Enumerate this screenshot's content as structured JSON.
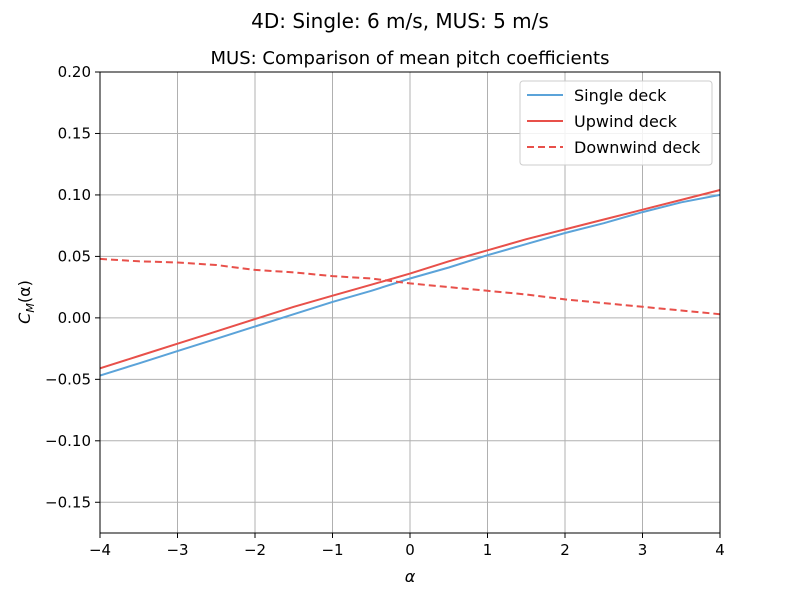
{
  "figure": {
    "suptitle": "4D: Single: 6 m/s, MUS: 5 m/s"
  },
  "chart_data": {
    "type": "line",
    "title": "MUS: Comparison of mean pitch coefficients",
    "xlabel": "α",
    "ylabel_main": "C",
    "ylabel_sub": "M",
    "ylabel_tail": "(α)",
    "xlim": [
      -4,
      4
    ],
    "ylim": [
      -0.175,
      0.2
    ],
    "xticks": [
      -4,
      -3,
      -2,
      -1,
      0,
      1,
      2,
      3,
      4
    ],
    "xtick_labels": [
      "−4",
      "−3",
      "−2",
      "−1",
      "0",
      "1",
      "2",
      "3",
      "4"
    ],
    "yticks": [
      -0.15,
      -0.1,
      -0.05,
      0.0,
      0.05,
      0.1,
      0.15,
      0.2
    ],
    "ytick_labels": [
      "−0.15",
      "−0.10",
      "−0.05",
      "0.00",
      "0.05",
      "0.10",
      "0.15",
      "0.20"
    ],
    "grid": true,
    "legend_position": "top-right",
    "series": [
      {
        "name": "Single deck",
        "color": "#5ba3d9",
        "dash": "solid",
        "x": [
          -4,
          -3.5,
          -3,
          -2.5,
          -2,
          -1.5,
          -1,
          -0.5,
          0,
          0.5,
          1,
          1.5,
          2,
          2.5,
          3,
          3.5,
          4
        ],
        "y": [
          -0.047,
          -0.037,
          -0.027,
          -0.017,
          -0.007,
          0.003,
          0.013,
          0.022,
          0.032,
          0.041,
          0.051,
          0.06,
          0.069,
          0.077,
          0.086,
          0.094,
          0.1
        ]
      },
      {
        "name": "Upwind deck",
        "color": "#e8504a",
        "dash": "solid",
        "x": [
          -4,
          -3.5,
          -3,
          -2.5,
          -2,
          -1.5,
          -1,
          -0.5,
          0,
          0.5,
          1,
          1.5,
          2,
          2.5,
          3,
          3.5,
          4
        ],
        "y": [
          -0.041,
          -0.031,
          -0.021,
          -0.011,
          -0.001,
          0.009,
          0.018,
          0.027,
          0.036,
          0.046,
          0.055,
          0.064,
          0.072,
          0.08,
          0.088,
          0.096,
          0.104
        ]
      },
      {
        "name": "Downwind deck",
        "color": "#e8504a",
        "dash": "dashed",
        "x": [
          -4,
          -3.5,
          -3,
          -2.5,
          -2,
          -1.5,
          -1,
          -0.5,
          0,
          0.5,
          1,
          1.5,
          2,
          2.5,
          3,
          3.5,
          4
        ],
        "y": [
          0.048,
          0.046,
          0.045,
          0.043,
          0.039,
          0.037,
          0.034,
          0.032,
          0.028,
          0.025,
          0.022,
          0.019,
          0.015,
          0.012,
          0.009,
          0.006,
          0.003
        ]
      }
    ]
  }
}
